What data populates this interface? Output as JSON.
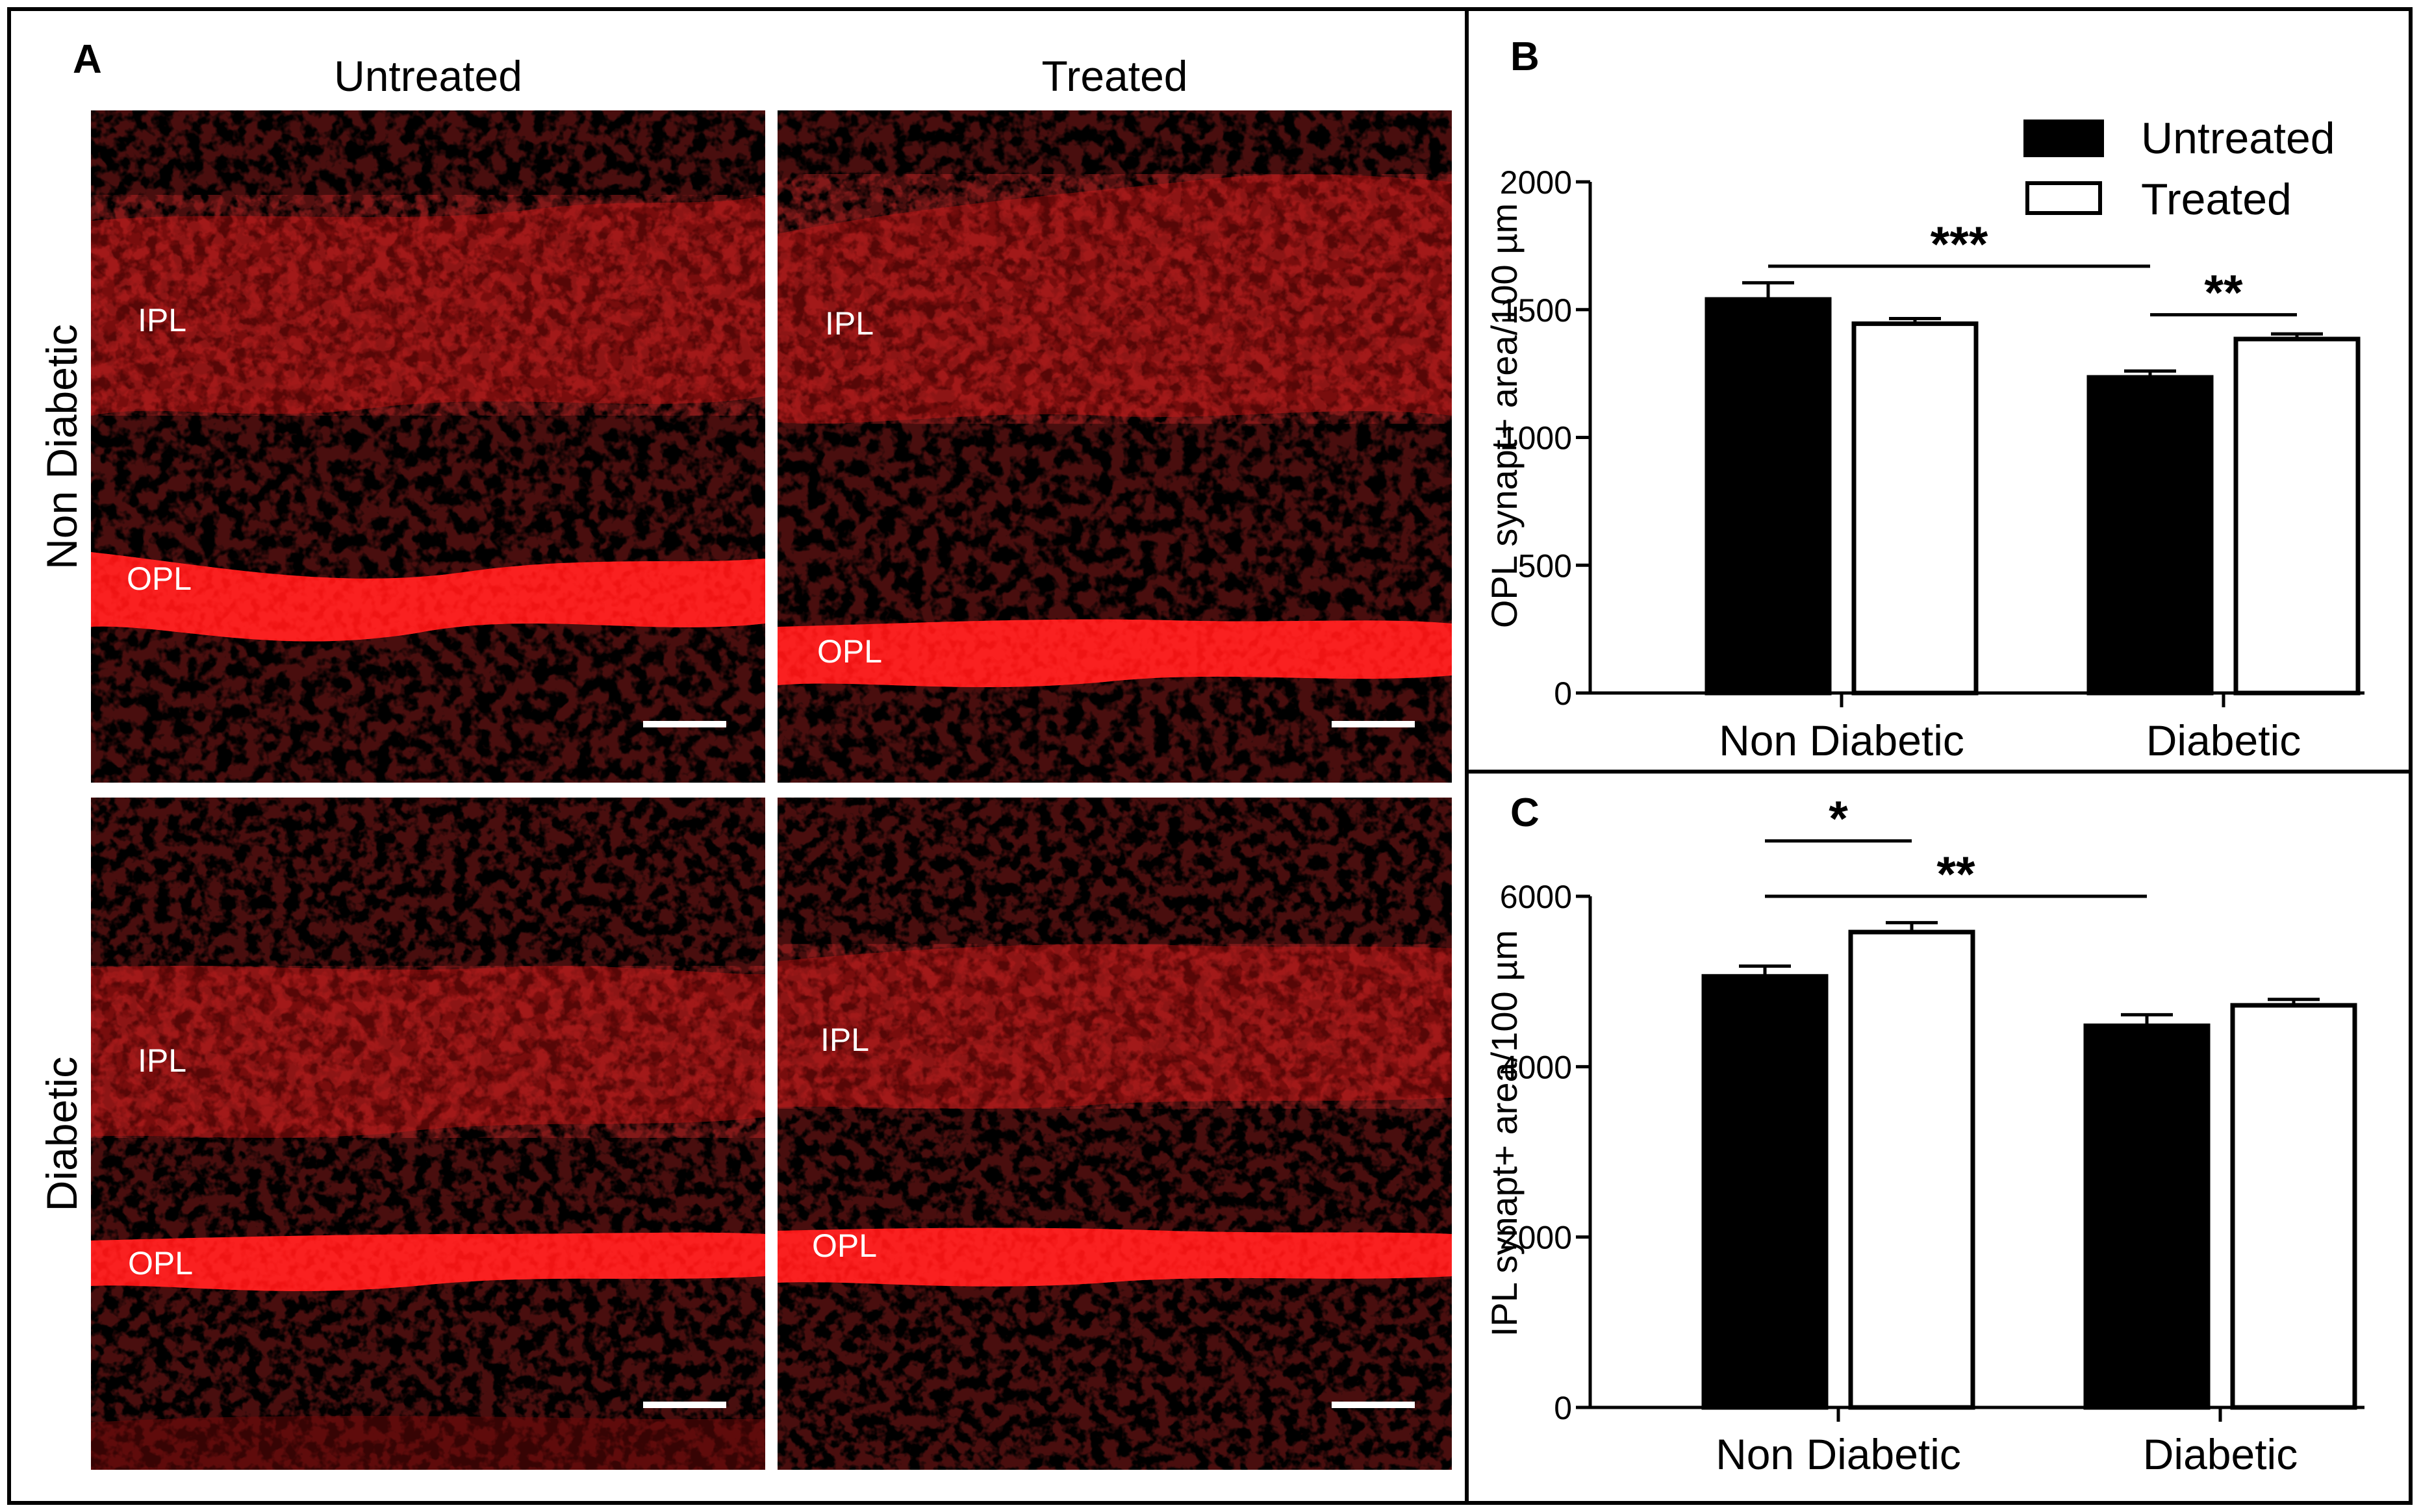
{
  "panel_a": {
    "letter": "A",
    "col_titles": [
      "Untreated",
      "Treated"
    ],
    "row_titles": [
      "Non Diabetic",
      "Diabetic"
    ],
    "micrographs": [
      {
        "labels": [
          "IPL",
          "OPL"
        ]
      },
      {
        "labels": [
          "IPL",
          "OPL"
        ]
      },
      {
        "labels": [
          "IPL",
          "OPL"
        ]
      },
      {
        "labels": [
          "IPL",
          "OPL"
        ]
      }
    ],
    "stain_color": "#e01010"
  },
  "legend": [
    "Untreated",
    "Treated"
  ],
  "chart_data": [
    {
      "panel": "B",
      "type": "bar",
      "categories": [
        "Non Diabetic",
        "Diabetic"
      ],
      "series": [
        {
          "name": "Untreated",
          "values": [
            1540,
            1235
          ],
          "errors": [
            65,
            25
          ],
          "fill": "#000000"
        },
        {
          "name": "Treated",
          "values": [
            1445,
            1385
          ],
          "errors": [
            20,
            20
          ],
          "fill": "#ffffff"
        }
      ],
      "ylabel": "OPL synapt+ area/100 µm",
      "ylim": [
        0,
        2000
      ],
      "yticks": [
        0,
        500,
        1000,
        1500,
        2000
      ],
      "significance": [
        {
          "label": "***",
          "from": [
            0,
            0
          ],
          "to": [
            1,
            0
          ],
          "y": 1670
        },
        {
          "label": "**",
          "from": [
            1,
            0
          ],
          "to": [
            1,
            1
          ],
          "y": 1480
        }
      ]
    },
    {
      "panel": "C",
      "type": "bar",
      "categories": [
        "Non Diabetic",
        "Diabetic"
      ],
      "series": [
        {
          "name": "Untreated",
          "values": [
            5060,
            4480
          ],
          "errors": [
            120,
            130
          ],
          "fill": "#000000"
        },
        {
          "name": "Treated",
          "values": [
            5580,
            4720
          ],
          "errors": [
            110,
            70
          ],
          "fill": "#ffffff"
        }
      ],
      "ylabel": "IPL synapt+ area/100 µm",
      "ylim": [
        0,
        6000
      ],
      "yticks": [
        0,
        2000,
        4000,
        6000
      ],
      "significance": [
        {
          "label": "*",
          "from": [
            0,
            0
          ],
          "to": [
            0,
            1
          ],
          "y": 6650
        },
        {
          "label": "**",
          "from": [
            0,
            0
          ],
          "to": [
            1,
            0
          ],
          "y": 6000
        }
      ]
    }
  ]
}
